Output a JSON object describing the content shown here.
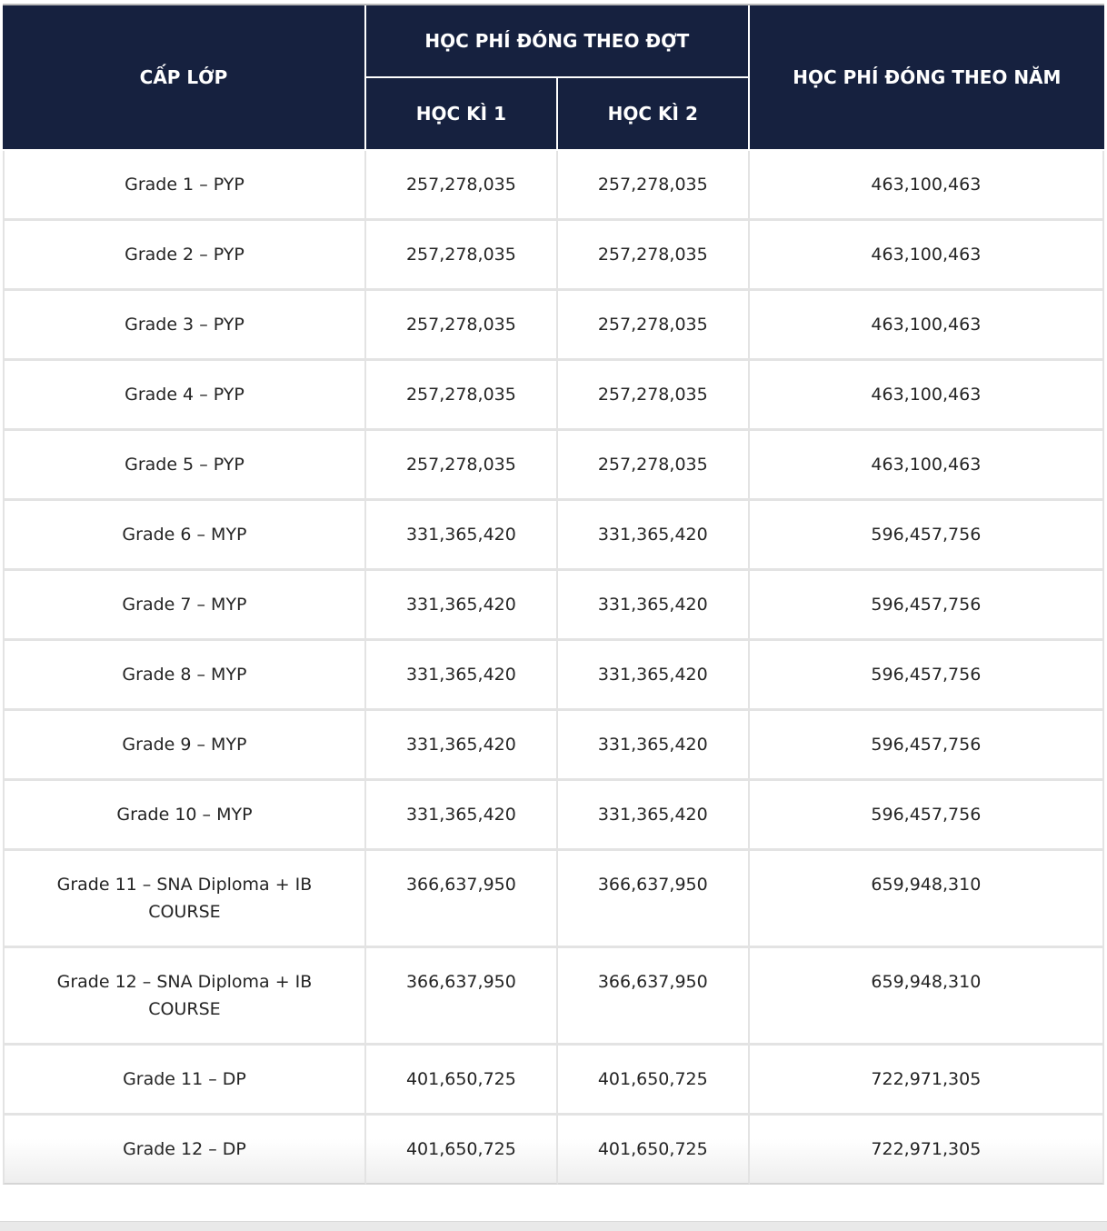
{
  "table": {
    "header": {
      "grade": "CẤP LỚP",
      "per_term_group": "HỌC PHÍ ĐÓNG THEO ĐỢT",
      "semester1": "HỌC KÌ 1",
      "semester2": "HỌC KÌ 2",
      "per_year": "HỌC PHÍ ĐÓNG THEO NĂM"
    },
    "rows": [
      {
        "grade": "Grade 1 – PYP",
        "semester1": "257,278,035",
        "semester2": "257,278,035",
        "year": "463,100,463"
      },
      {
        "grade": "Grade 2 – PYP",
        "semester1": "257,278,035",
        "semester2": "257,278,035",
        "year": "463,100,463"
      },
      {
        "grade": "Grade 3 – PYP",
        "semester1": "257,278,035",
        "semester2": "257,278,035",
        "year": "463,100,463"
      },
      {
        "grade": "Grade 4 – PYP",
        "semester1": "257,278,035",
        "semester2": "257,278,035",
        "year": "463,100,463"
      },
      {
        "grade": "Grade 5 – PYP",
        "semester1": "257,278,035",
        "semester2": "257,278,035",
        "year": "463,100,463"
      },
      {
        "grade": "Grade 6 – MYP",
        "semester1": "331,365,420",
        "semester2": "331,365,420",
        "year": "596,457,756"
      },
      {
        "grade": "Grade 7 – MYP",
        "semester1": "331,365,420",
        "semester2": "331,365,420",
        "year": "596,457,756"
      },
      {
        "grade": "Grade 8 – MYP",
        "semester1": "331,365,420",
        "semester2": "331,365,420",
        "year": "596,457,756"
      },
      {
        "grade": "Grade 9 – MYP",
        "semester1": "331,365,420",
        "semester2": "331,365,420",
        "year": "596,457,756"
      },
      {
        "grade": "Grade 10 – MYP",
        "semester1": "331,365,420",
        "semester2": "331,365,420",
        "year": "596,457,756"
      },
      {
        "grade": "Grade 11 – SNA Diploma + IB COURSE",
        "semester1": "366,637,950",
        "semester2": "366,637,950",
        "year": "659,948,310"
      },
      {
        "grade": "Grade 12 – SNA Diploma + IB COURSE",
        "semester1": "366,637,950",
        "semester2": "366,637,950",
        "year": "659,948,310"
      },
      {
        "grade": "Grade 11 – DP",
        "semester1": "401,650,725",
        "semester2": "401,650,725",
        "year": "722,971,305"
      },
      {
        "grade": "Grade 12 – DP",
        "semester1": "401,650,725",
        "semester2": "401,650,725",
        "year": "722,971,305"
      }
    ]
  },
  "colors": {
    "header_bg": "#16213f",
    "header_text": "#ffffff",
    "cell_border": "#e3e3e3",
    "body_text": "#242424",
    "bottom_strip": "#e9e9e9"
  }
}
